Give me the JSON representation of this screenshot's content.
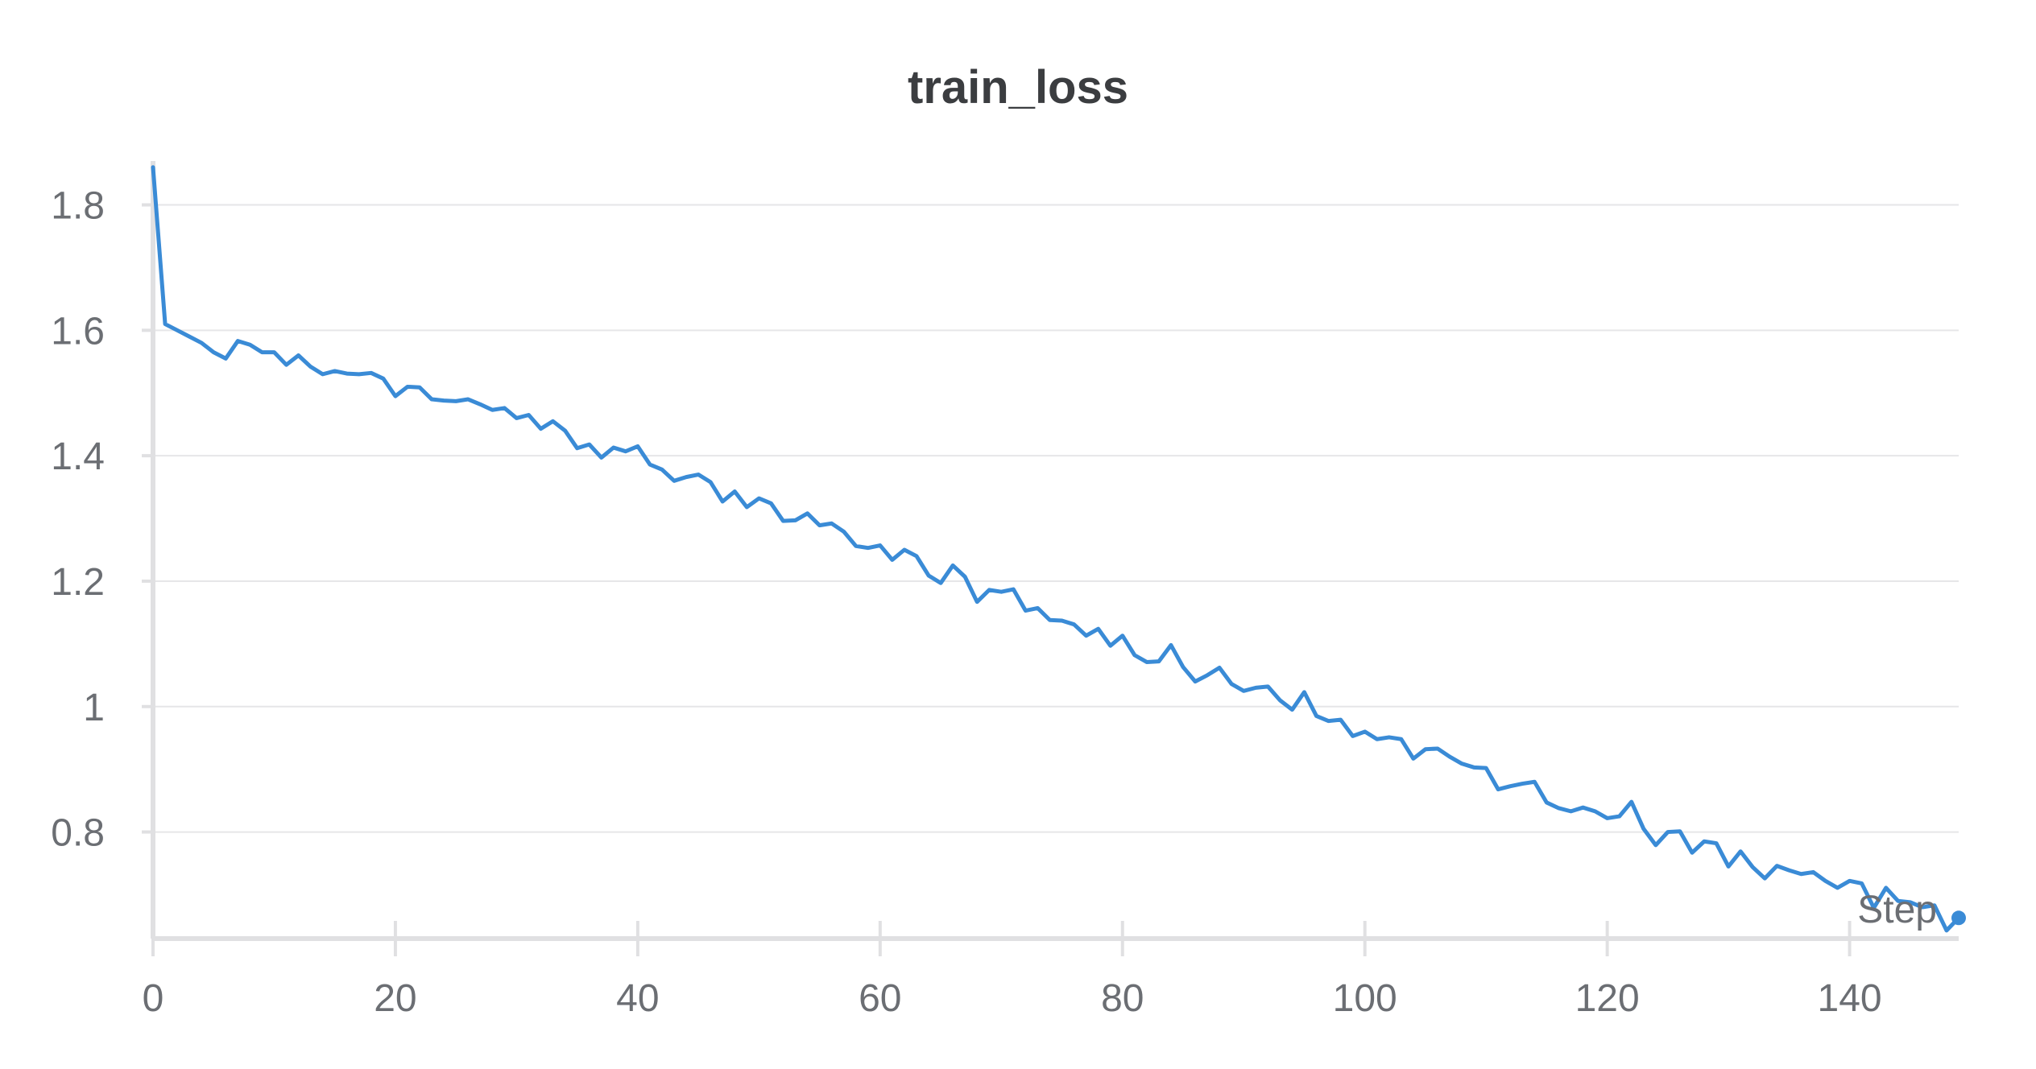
{
  "chart_data": {
    "type": "line",
    "title": "train_loss",
    "xlabel": "Step",
    "ylabel": "",
    "xlim": [
      0,
      149
    ],
    "ylim": [
      0.63,
      1.87
    ],
    "xticks": [
      0,
      20,
      40,
      60,
      80,
      100,
      120,
      140
    ],
    "xtick_labels": [
      "0",
      "20",
      "40",
      "60",
      "80",
      "100",
      "120",
      "140"
    ],
    "yticks": [
      0.8,
      1.0,
      1.2,
      1.4,
      1.6,
      1.8
    ],
    "ytick_labels": [
      "0.8",
      "1",
      "1.2",
      "1.4",
      "1.6",
      "1.8"
    ],
    "grid": true,
    "color": "#3a8bd6",
    "series": [
      {
        "x": [
          0,
          1,
          2,
          3,
          4,
          5,
          6,
          7,
          8,
          9,
          10,
          11,
          12,
          13,
          14,
          15,
          16,
          17,
          18,
          19,
          20,
          21,
          22,
          23,
          24,
          25,
          26,
          27,
          28,
          29,
          30,
          31,
          32,
          33,
          34,
          35,
          36,
          37,
          38,
          39,
          40,
          41,
          42,
          43,
          44,
          45,
          46,
          47,
          48,
          49,
          50,
          51,
          52,
          53,
          54,
          55,
          56,
          57,
          58,
          59,
          60,
          61,
          62,
          63,
          64,
          65,
          66,
          67,
          68,
          69,
          70,
          71,
          72,
          73,
          74,
          75,
          76,
          77,
          78,
          79,
          80,
          81,
          82,
          83,
          84,
          85,
          86,
          87,
          88,
          89,
          90,
          91,
          92,
          93,
          94,
          95,
          96,
          97,
          98,
          99,
          100,
          101,
          102,
          103,
          104,
          105,
          106,
          107,
          108,
          109,
          110,
          111,
          112,
          113,
          114,
          115,
          116,
          117,
          118,
          119,
          120,
          121,
          122,
          123,
          124,
          125,
          126,
          127,
          128,
          129,
          130,
          131,
          132,
          133,
          134,
          135,
          136,
          137,
          138,
          139,
          140,
          141,
          142,
          143,
          144,
          145,
          146,
          147,
          148,
          149
        ],
        "y": [
          1.86,
          1.61,
          1.6,
          1.59,
          1.58,
          1.565,
          1.555,
          1.583,
          1.577,
          1.565,
          1.565,
          1.545,
          1.56,
          1.542,
          1.53,
          1.535,
          1.531,
          1.53,
          1.532,
          1.523,
          1.495,
          1.51,
          1.509,
          1.49,
          1.488,
          1.487,
          1.49,
          1.482,
          1.473,
          1.476,
          1.46,
          1.465,
          1.443,
          1.455,
          1.44,
          1.412,
          1.418,
          1.397,
          1.413,
          1.407,
          1.415,
          1.386,
          1.378,
          1.36,
          1.366,
          1.37,
          1.358,
          1.327,
          1.343,
          1.318,
          1.332,
          1.324,
          1.296,
          1.297,
          1.308,
          1.289,
          1.292,
          1.279,
          1.256,
          1.253,
          1.257,
          1.234,
          1.25,
          1.24,
          1.209,
          1.197,
          1.225,
          1.207,
          1.167,
          1.186,
          1.183,
          1.187,
          1.153,
          1.157,
          1.138,
          1.137,
          1.131,
          1.113,
          1.124,
          1.097,
          1.113,
          1.082,
          1.071,
          1.072,
          1.098,
          1.063,
          1.04,
          1.05,
          1.062,
          1.036,
          1.025,
          1.03,
          1.032,
          1.01,
          0.995,
          1.023,
          0.985,
          0.977,
          0.979,
          0.953,
          0.96,
          0.948,
          0.951,
          0.948,
          0.917,
          0.932,
          0.933,
          0.92,
          0.909,
          0.903,
          0.902,
          0.868,
          0.873,
          0.877,
          0.88,
          0.847,
          0.838,
          0.833,
          0.839,
          0.833,
          0.822,
          0.825,
          0.848,
          0.805,
          0.779,
          0.8,
          0.801,
          0.767,
          0.785,
          0.782,
          0.745,
          0.769,
          0.744,
          0.726,
          0.746,
          0.739,
          0.733,
          0.736,
          0.722,
          0.711,
          0.722,
          0.718,
          0.679,
          0.711,
          0.69,
          0.688,
          0.68,
          0.683,
          0.643,
          0.663
        ]
      }
    ]
  }
}
